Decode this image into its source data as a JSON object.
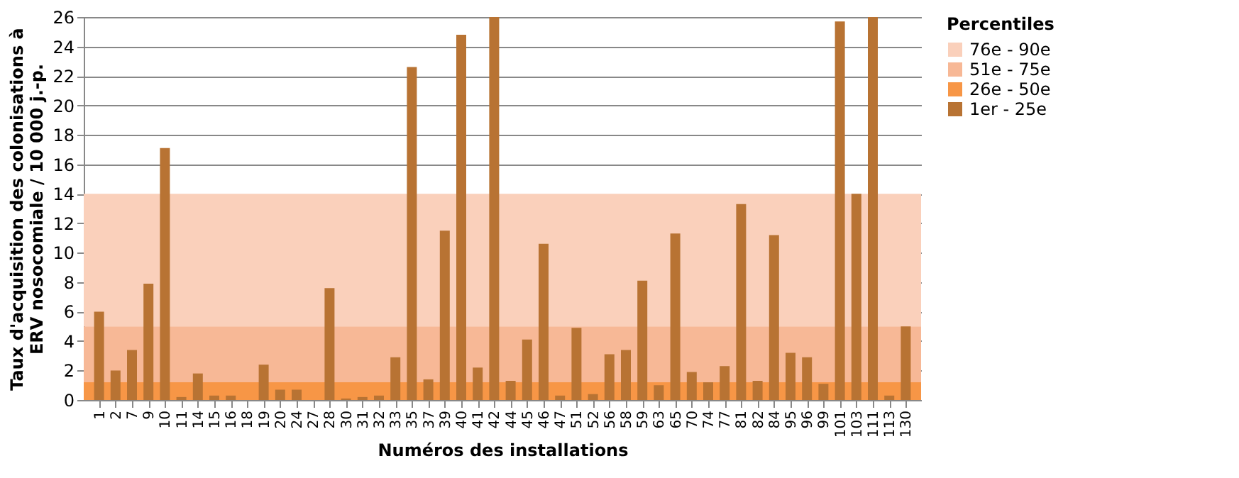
{
  "chart_data": {
    "type": "bar",
    "xlabel": "Numéros des installations",
    "ylabel": "Taux d'acquisition des colonisations à\nERV nosocomiale / 10 000 j.-p.",
    "legend_title": "Percentiles",
    "categories": [
      "1",
      "2",
      "7",
      "9",
      "10",
      "11",
      "14",
      "15",
      "16",
      "18",
      "19",
      "20",
      "24",
      "27",
      "28",
      "30",
      "31",
      "32",
      "33",
      "35",
      "37",
      "39",
      "40",
      "41",
      "42",
      "44",
      "45",
      "46",
      "47",
      "51",
      "52",
      "56",
      "58",
      "59",
      "63",
      "65",
      "70",
      "74",
      "77",
      "81",
      "82",
      "84",
      "95",
      "96",
      "99",
      "101",
      "103",
      "111",
      "113",
      "130"
    ],
    "series": [
      {
        "name": "1er - 25e",
        "color": "#b87333",
        "values": [
          6.0,
          2.0,
          3.4,
          7.9,
          17.1,
          0.2,
          1.8,
          0.3,
          0.3,
          0,
          2.4,
          0.7,
          0.7,
          0,
          7.6,
          0.1,
          0.2,
          0.3,
          2.9,
          22.6,
          1.4,
          11.5,
          24.8,
          2.2,
          26,
          1.3,
          4.1,
          10.6,
          0.3,
          4.9,
          0.4,
          3.1,
          3.4,
          8.1,
          1.0,
          11.3,
          1.9,
          1.2,
          2.3,
          13.3,
          1.3,
          11.2,
          3.2,
          2.9,
          1.1,
          25.7,
          14.0,
          26,
          0.3,
          5.0
        ]
      }
    ],
    "bands": [
      {
        "axis": "y",
        "from": 5,
        "to": 14,
        "label": "76e - 90e",
        "color": "#fad0bb"
      },
      {
        "axis": "y",
        "from": 1.2,
        "to": 5,
        "label": "51e - 75e",
        "color": "#f7b896"
      },
      {
        "axis": "y",
        "from": 0,
        "to": 1.2,
        "label": "26e - 50e",
        "color": "#f79646"
      }
    ],
    "ylim": [
      0,
      26
    ],
    "yticks": [
      0,
      2,
      4,
      6,
      8,
      10,
      12,
      14,
      16,
      18,
      20,
      22,
      24,
      26
    ],
    "grid": "y",
    "legend": "right"
  }
}
